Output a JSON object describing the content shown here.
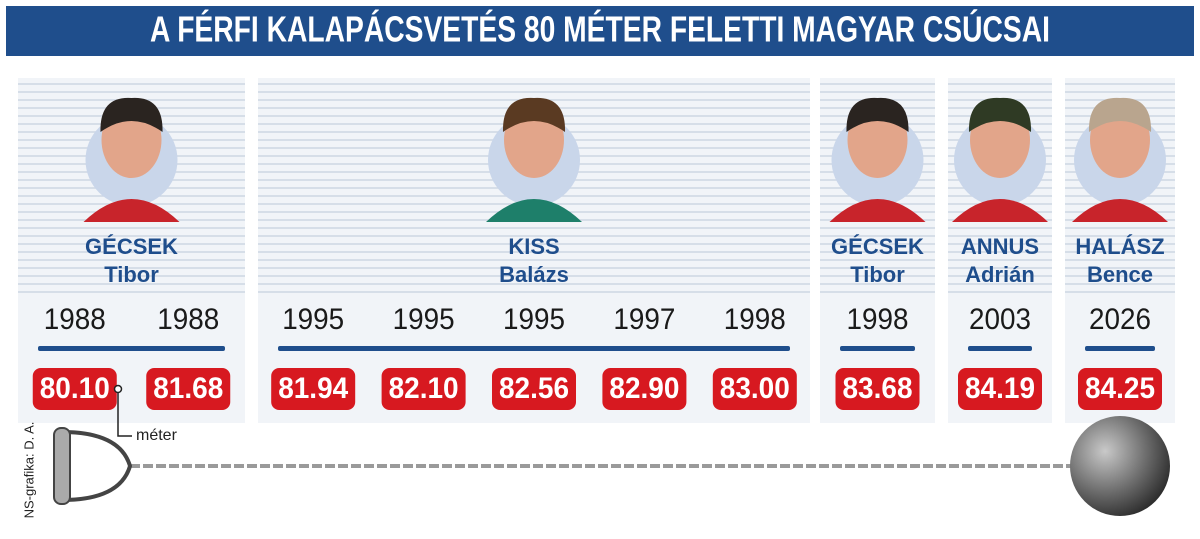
{
  "title": "A FÉRFI KALAPÁCSVETÉS 80 MÉTER FELETTI MAGYAR CSÚCSAI",
  "groups": [
    {
      "surname": "GÉCSEK",
      "given_name": "Tibor",
      "records": [
        {
          "year": 1988,
          "result": "80.10"
        },
        {
          "year": 1988,
          "result": "81.68"
        }
      ]
    },
    {
      "surname": "KISS",
      "given_name": "Balázs",
      "records": [
        {
          "year": 1995,
          "result": "81.94"
        },
        {
          "year": 1995,
          "result": "82.10"
        },
        {
          "year": 1995,
          "result": "82.56"
        },
        {
          "year": 1997,
          "result": "82.90"
        },
        {
          "year": 1998,
          "result": "83.00"
        }
      ]
    },
    {
      "surname": "GÉCSEK",
      "given_name": "Tibor",
      "records": [
        {
          "year": 1998,
          "result": "83.68"
        }
      ]
    },
    {
      "surname": "ANNUS",
      "given_name": "Adrián",
      "records": [
        {
          "year": 2003,
          "result": "84.19"
        }
      ]
    },
    {
      "surname": "HALÁSZ",
      "given_name": "Bence",
      "records": [
        {
          "year": 2026,
          "result": "84.25"
        }
      ]
    }
  ],
  "unit_label": "méter",
  "credit": "NS-grafika: D. A."
}
